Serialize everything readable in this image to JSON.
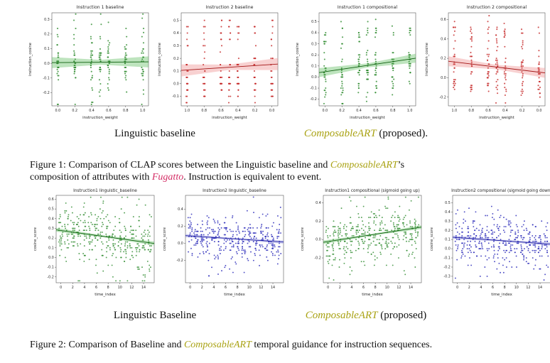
{
  "colors": {
    "brand_accent": "#a9a213",
    "fugatto_accent": "#d42e66",
    "palettes": {
      "green": {
        "pt": "#2e8b2e",
        "ln": "#0d5f0d",
        "band": "#6fc46f"
      },
      "red": {
        "pt": "#c62828",
        "ln": "#a31515",
        "band": "#f09a9a"
      },
      "blue": {
        "pt": "#2626b8",
        "ln": "#1818a0",
        "band": "#9a9ae0"
      }
    }
  },
  "figure1": {
    "panel_left": "Linguistic baseline",
    "panel_right_brand": "ComposableART",
    "panel_right_rest": " (proposed).",
    "cap_l1a": "Figure 1: Comparison of CLAP scores between the Linguistic baseline and ",
    "cap_brand": "ComposableART",
    "cap_l1b": "’s",
    "cap_l2a": "composition of attributes with ",
    "cap_fugatto": "Fugatto",
    "cap_l2b": ". Instruction is equivalent to event."
  },
  "figure2": {
    "panel_left": "Linguistic Baseline",
    "panel_right_brand": "ComposableART",
    "panel_right_rest": " (proposed)",
    "cap_l1a": "Figure 2: Comparison of Baseline and ",
    "cap_brand": "ComposableART",
    "cap_l1b": " temporal guidance for instruction sequences."
  },
  "chart_data": [
    {
      "id": "instruction-1-baseline",
      "row": "top",
      "type": "scatter",
      "color": "green",
      "seed": 11,
      "title": "Instruction 1 baseline",
      "xlabel": "instruction_weight",
      "ylabel": "instruction_cosine",
      "xlim": [
        -0.07,
        1.07
      ],
      "ylim": [
        -0.29,
        0.345
      ],
      "xticks": [
        {
          "v": 0.0,
          "l": "0.0"
        },
        {
          "v": 0.2,
          "l": "0.2"
        },
        {
          "v": 0.4,
          "l": "0.4"
        },
        {
          "v": 0.6,
          "l": "0.6"
        },
        {
          "v": 0.8,
          "l": "0.8"
        },
        {
          "v": 1.0,
          "l": "1.0"
        }
      ],
      "yticks": [
        0.3,
        0.2,
        0.1,
        0.0,
        -0.1,
        -0.2
      ],
      "columns": [
        0,
        0.2,
        0.4,
        0.5,
        0.6,
        0.8,
        1.0
      ],
      "pointsPerColumn": 30,
      "xJitter": 0.012,
      "quantStep": 0.014,
      "clusters": [
        {
          "c": 0.015,
          "s": 0.06,
          "w": 0.5
        },
        {
          "c": 0.0,
          "s": 0.16,
          "w": 0.5
        }
      ],
      "trend": {
        "left": 0.005,
        "right": 0.01,
        "band": 0.022
      }
    },
    {
      "id": "instruction-2-baseline",
      "row": "top",
      "type": "scatter",
      "color": "red",
      "seed": 22,
      "title": "Instruction 2 baseline",
      "xlabel": "instruction_weight",
      "ylabel": "instruction_cosine",
      "xlim": [
        1.07,
        -0.07
      ],
      "ylim": [
        -0.175,
        0.56
      ],
      "xticks": [
        {
          "v": 1.0,
          "l": "1.0"
        },
        {
          "v": 0.8,
          "l": "0.8"
        },
        {
          "v": 0.6,
          "l": "0.6"
        },
        {
          "v": 0.4,
          "l": "0.4"
        },
        {
          "v": 0.2,
          "l": "0.2"
        },
        {
          "v": 0.0,
          "l": "0.0"
        }
      ],
      "yticks": [
        0.5,
        0.4,
        0.3,
        0.2,
        0.1,
        0.0,
        -0.1
      ],
      "columns": [
        1.0,
        0.8,
        0.6,
        0.5,
        0.4,
        0.2,
        0.0
      ],
      "pointsPerColumn": 28,
      "xJitter": 0.012,
      "quantStep": 0.05,
      "clusters": [
        {
          "c": 0.01,
          "s": 0.035,
          "w": 0.4
        },
        {
          "c": 0.4,
          "s": 0.045,
          "w": 0.27
        },
        {
          "c": 0.15,
          "s": 0.04,
          "w": 0.2
        },
        {
          "c": -0.09,
          "s": 0.03,
          "w": 0.13
        }
      ],
      "trend": {
        "left": 0.105,
        "right": 0.155,
        "band": 0.028
      }
    },
    {
      "id": "instruction-1-compositional",
      "row": "top",
      "type": "scatter",
      "color": "green",
      "seed": 33,
      "title": "Instruction 1 compositional",
      "xlabel": "instruction_weight",
      "ylabel": "instruction_cosine",
      "xlim": [
        -0.07,
        1.07
      ],
      "ylim": [
        -0.26,
        0.58
      ],
      "xticks": [
        {
          "v": 0.0,
          "l": "0.0"
        },
        {
          "v": 0.2,
          "l": "0.2"
        },
        {
          "v": 0.4,
          "l": "0.4"
        },
        {
          "v": 0.6,
          "l": "0.6"
        },
        {
          "v": 0.8,
          "l": "0.8"
        },
        {
          "v": 1.0,
          "l": "1.0"
        }
      ],
      "yticks": [
        0.5,
        0.4,
        0.3,
        0.2,
        0.1,
        0.0,
        -0.1,
        -0.2
      ],
      "columns": [
        0,
        0.2,
        0.4,
        0.5,
        0.6,
        0.8,
        1.0
      ],
      "pointsPerColumn": 30,
      "xJitter": 0.012,
      "quantStep": 0.02,
      "clusters": [
        {
          "c": 0.07,
          "s": 0.075,
          "w": 0.52
        },
        {
          "c": 0.37,
          "s": 0.07,
          "w": 0.26
        },
        {
          "c": -0.07,
          "s": 0.08,
          "w": 0.22
        }
      ],
      "trend": {
        "left": 0.04,
        "right": 0.17,
        "band": 0.024
      }
    },
    {
      "id": "instruction-2-compositional",
      "row": "top",
      "type": "scatter",
      "color": "red",
      "seed": 44,
      "title": "Instruction 2 compositional",
      "xlabel": "instruction_weight",
      "ylabel": "instruction_cosine",
      "xlim": [
        1.07,
        -0.07
      ],
      "ylim": [
        -0.29,
        0.67
      ],
      "xticks": [
        {
          "v": 1.0,
          "l": "1.0"
        },
        {
          "v": 0.8,
          "l": "0.8"
        },
        {
          "v": 0.6,
          "l": "0.6"
        },
        {
          "v": 0.4,
          "l": "0.4"
        },
        {
          "v": 0.2,
          "l": "0.2"
        },
        {
          "v": 0.0,
          "l": "0.0"
        }
      ],
      "yticks": [
        0.6,
        0.4,
        0.2,
        0.0,
        -0.2
      ],
      "columns": [
        1.0,
        0.8,
        0.6,
        0.5,
        0.4,
        0.2,
        0.0
      ],
      "pointsPerColumn": 30,
      "xJitter": 0.012,
      "quantStep": 0.02,
      "clusters": [
        {
          "c": 0.12,
          "s": 0.09,
          "w": 0.5
        },
        {
          "c": 0.45,
          "s": 0.07,
          "w": 0.26
        },
        {
          "c": -0.07,
          "s": 0.09,
          "w": 0.24
        }
      ],
      "trend": {
        "left": 0.17,
        "right": 0.05,
        "band": 0.03
      }
    },
    {
      "id": "instruction1-linguistic-baseline",
      "row": "bottom",
      "type": "scatter",
      "color": "green",
      "seed": 55,
      "title": "Instruction1 linguistic_baseline",
      "xlabel": "time_index",
      "ylabel": "cosine_score",
      "xlim": [
        -0.8,
        15.8
      ],
      "ylim": [
        -0.26,
        0.64
      ],
      "xticks": [
        {
          "v": 0,
          "l": "0"
        },
        {
          "v": 2,
          "l": "2"
        },
        {
          "v": 4,
          "l": "4"
        },
        {
          "v": 6,
          "l": "6"
        },
        {
          "v": 8,
          "l": "8"
        },
        {
          "v": 10,
          "l": "10"
        },
        {
          "v": 12,
          "l": "12"
        },
        {
          "v": 14,
          "l": "14"
        }
      ],
      "yticks": [
        0.6,
        0.5,
        0.4,
        0.3,
        0.2,
        0.1,
        0.0,
        -0.1,
        -0.2
      ],
      "columns": [
        0,
        1,
        2,
        3,
        4,
        5,
        6,
        7,
        8,
        9,
        10,
        11,
        12,
        13,
        14,
        15
      ],
      "pointsPerColumn": 24,
      "xJitter": 0.36,
      "quantStep": 0.02,
      "clusters": [
        {
          "c": 0.21,
          "s": 0.11,
          "w": 0.62
        },
        {
          "c": 0.2,
          "s": 0.21,
          "w": 0.38
        }
      ],
      "trend": {
        "left": 0.285,
        "right": 0.145,
        "band": 0.013
      }
    },
    {
      "id": "instruction2-linguistic-baseline",
      "row": "bottom",
      "type": "scatter",
      "color": "blue",
      "seed": 66,
      "title": "Instruction2 linguistic_baseline",
      "xlabel": "time_index",
      "ylabel": "cosine_score",
      "xlim": [
        -0.8,
        15.8
      ],
      "ylim": [
        -0.46,
        0.56
      ],
      "xticks": [
        {
          "v": 0,
          "l": "0"
        },
        {
          "v": 2,
          "l": "2"
        },
        {
          "v": 4,
          "l": "4"
        },
        {
          "v": 6,
          "l": "6"
        },
        {
          "v": 8,
          "l": "8"
        },
        {
          "v": 10,
          "l": "10"
        },
        {
          "v": 12,
          "l": "12"
        },
        {
          "v": 14,
          "l": "14"
        }
      ],
      "yticks": [
        0.4,
        0.2,
        0.0,
        -0.2
      ],
      "columns": [
        0,
        1,
        2,
        3,
        4,
        5,
        6,
        7,
        8,
        9,
        10,
        11,
        12,
        13,
        14,
        15
      ],
      "pointsPerColumn": 24,
      "xJitter": 0.36,
      "quantStep": 0.02,
      "clusters": [
        {
          "c": 0.05,
          "s": 0.1,
          "w": 0.6
        },
        {
          "c": 0.04,
          "s": 0.2,
          "w": 0.4
        }
      ],
      "trend": {
        "left": 0.09,
        "right": 0.015,
        "band": 0.013
      }
    },
    {
      "id": "instruction1-compositional-sigmoid-up",
      "row": "bottom",
      "type": "scatter",
      "color": "green",
      "seed": 77,
      "title": "Instruction1 compositional (sigmoid going up)",
      "xlabel": "time_index",
      "ylabel": "cosine_score",
      "xlim": [
        -0.8,
        15.8
      ],
      "ylim": [
        -0.47,
        0.48
      ],
      "xticks": [
        {
          "v": 0,
          "l": "0"
        },
        {
          "v": 2,
          "l": "2"
        },
        {
          "v": 4,
          "l": "4"
        },
        {
          "v": 6,
          "l": "6"
        },
        {
          "v": 8,
          "l": "8"
        },
        {
          "v": 10,
          "l": "10"
        },
        {
          "v": 12,
          "l": "12"
        },
        {
          "v": 14,
          "l": "14"
        }
      ],
      "yticks": [
        0.4,
        0.2,
        0.0,
        -0.2
      ],
      "columns": [
        0,
        1,
        2,
        3,
        4,
        5,
        6,
        7,
        8,
        9,
        10,
        11,
        12,
        13,
        14,
        15
      ],
      "pointsPerColumn": 24,
      "xJitter": 0.36,
      "quantStep": 0.02,
      "clusters": [
        {
          "c": 0.05,
          "s": 0.1,
          "w": 0.6
        },
        {
          "c": 0.04,
          "s": 0.19,
          "w": 0.4
        }
      ],
      "trend": {
        "left": -0.03,
        "right": 0.135,
        "band": 0.013
      }
    },
    {
      "id": "instruction2-compositional-sigmoid-down",
      "row": "bottom",
      "type": "scatter",
      "color": "blue",
      "seed": 88,
      "title": "Instruction2 compositional (sigmoid going down)",
      "xlabel": "time_index",
      "ylabel": "cosine_score",
      "xlim": [
        -0.8,
        15.8
      ],
      "ylim": [
        -0.37,
        0.58
      ],
      "xticks": [
        {
          "v": 0,
          "l": "0"
        },
        {
          "v": 2,
          "l": "2"
        },
        {
          "v": 4,
          "l": "4"
        },
        {
          "v": 6,
          "l": "6"
        },
        {
          "v": 8,
          "l": "8"
        },
        {
          "v": 10,
          "l": "10"
        },
        {
          "v": 12,
          "l": "12"
        },
        {
          "v": 14,
          "l": "14"
        }
      ],
      "yticks": [
        0.5,
        0.4,
        0.3,
        0.2,
        0.1,
        0.0,
        -0.1,
        -0.2,
        -0.3
      ],
      "columns": [
        0,
        1,
        2,
        3,
        4,
        5,
        6,
        7,
        8,
        9,
        10,
        11,
        12,
        13,
        14,
        15
      ],
      "pointsPerColumn": 24,
      "xJitter": 0.36,
      "quantStep": 0.02,
      "clusters": [
        {
          "c": 0.085,
          "s": 0.1,
          "w": 0.6
        },
        {
          "c": 0.08,
          "s": 0.19,
          "w": 0.4
        }
      ],
      "trend": {
        "left": 0.125,
        "right": 0.05,
        "band": 0.013
      }
    }
  ]
}
